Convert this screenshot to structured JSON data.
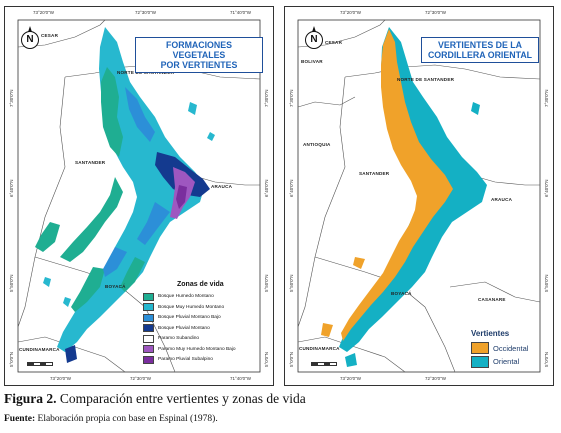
{
  "left_map": {
    "title_line1": "FORMACIONES VEGETALES",
    "title_line2": "POR VERTIENTES",
    "north": "N",
    "coords_top": [
      "73°20'0\"W",
      "72°30'0\"W",
      "71°40'0\"W"
    ],
    "coords_bottom": [
      "73°20'0\"W",
      "72°30'0\"W",
      "71°40'0\"W"
    ],
    "coords_left": [
      "7°30'0\"N",
      "6°40'0\"N",
      "5°50'0\"N",
      "5°0'0\"N"
    ],
    "coords_right": [
      "7°30'0\"N",
      "6°40'0\"N",
      "5°50'0\"N",
      "5°0'0\"N"
    ],
    "regions": {
      "cesar": "CESAR",
      "norte": "NORTE DE SANTANDER",
      "santander": "SANTANDER",
      "arauca": "ARAUCA",
      "boyaca": "BOYACÁ",
      "cundinamarca": "CUNDINAMARCA"
    },
    "legend": {
      "title": "Zonas de vida",
      "items": [
        {
          "label": "Bosque Humedo Montano",
          "color": "#1fae92"
        },
        {
          "label": "Bosque Muy Humedo Montano",
          "color": "#25b7cf"
        },
        {
          "label": "Bosque Pluvial Montano Bajo",
          "color": "#2c8fd8"
        },
        {
          "label": "Bosque Pluvial Montano",
          "color": "#143a8f"
        },
        {
          "label": "Paramo Subandino",
          "color": "#ffffff"
        },
        {
          "label": "Paramo Muy Humedo Montano Bajo",
          "color": "#9e57c0"
        },
        {
          "label": "Paramo Pluvial Subalpino",
          "color": "#7a2e9e"
        }
      ]
    }
  },
  "right_map": {
    "title_line1": "VERTIENTES DE LA",
    "title_line2": "CORDILLERA ORIENTAL",
    "north": "N",
    "coords_top": [
      "73°20'0\"W",
      "72°30'0\"W"
    ],
    "coords_bottom": [
      "73°20'0\"W",
      "72°30'0\"W"
    ],
    "coords_left": [
      "7°30'0\"N",
      "6°40'0\"N",
      "5°50'0\"N",
      "5°0'0\"N"
    ],
    "coords_right": [
      "7°30'0\"N",
      "6°40'0\"N",
      "5°50'0\"N",
      "5°0'0\"N"
    ],
    "regions": {
      "cesar": "CESAR",
      "bolivar": "BOLIVAR",
      "norte": "NORTE DE SANTANDER",
      "antioquia": "ANTIOQUIA",
      "santander": "SANTANDER",
      "arauca": "ARAUCA",
      "boyaca": "BOYACÁ",
      "casanare": "CASANARE",
      "cundinamarca": "CUNDINAMARCA"
    },
    "legend": {
      "title": "Vertientes",
      "items": [
        {
          "label": "Occidental",
          "color": "#f0a22a"
        },
        {
          "label": "Oriental",
          "color": "#14b0c4"
        }
      ]
    }
  },
  "caption": {
    "prefix": "Figura 2.",
    "text": " Comparación entre vertientes y zonas de vida"
  },
  "source": {
    "prefix": "Fuente:",
    "text": " Elaboración propia con base en Espinal (1978)."
  }
}
